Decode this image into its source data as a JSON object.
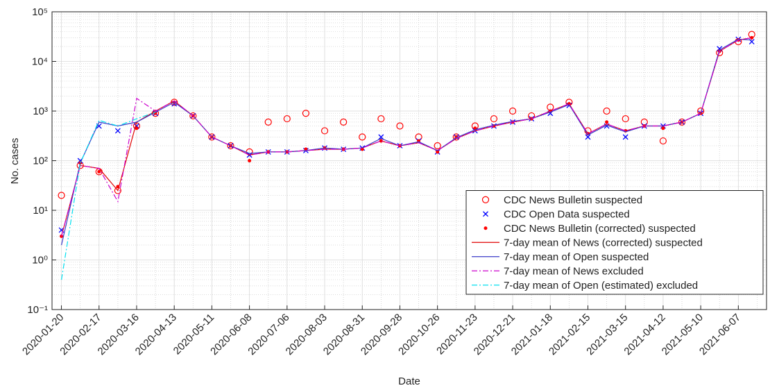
{
  "chart_data": {
    "type": "line",
    "y_label": "No. cases",
    "x_label": "Date",
    "log_y": true,
    "grid": true,
    "legend_position": "lower right",
    "x": [
      "2020-01-20",
      "2020-02-03",
      "2020-02-17",
      "2020-03-02",
      "2020-03-16",
      "2020-03-30",
      "2020-04-13",
      "2020-04-27",
      "2020-05-11",
      "2020-05-25",
      "2020-06-08",
      "2020-06-22",
      "2020-07-06",
      "2020-07-20",
      "2020-08-03",
      "2020-08-17",
      "2020-08-31",
      "2020-09-14",
      "2020-09-28",
      "2020-10-12",
      "2020-10-26",
      "2020-11-09",
      "2020-11-23",
      "2020-12-07",
      "2020-12-21",
      "2021-01-04",
      "2021-01-18",
      "2021-02-01",
      "2021-02-15",
      "2021-03-01",
      "2021-03-15",
      "2021-03-29",
      "2021-04-12",
      "2021-04-26",
      "2021-05-10",
      "2021-05-24",
      "2021-06-07",
      "2021-06-17"
    ],
    "xlim": [
      "2020-01-13",
      "2021-06-28"
    ],
    "xticks": [
      "2020-01-20",
      "2020-02-17",
      "2020-03-16",
      "2020-04-13",
      "2020-05-11",
      "2020-06-08",
      "2020-07-06",
      "2020-08-03",
      "2020-08-31",
      "2020-09-28",
      "2020-10-26",
      "2020-11-23",
      "2020-12-21",
      "2021-01-18",
      "2021-02-15",
      "2021-03-15",
      "2021-04-12",
      "2021-05-10",
      "2021-06-07"
    ],
    "ylim": [
      0.1,
      100000
    ],
    "yticks": [
      {
        "value": 0.1,
        "label": "10⁻¹"
      },
      {
        "value": 1,
        "label": "10⁰"
      },
      {
        "value": 10,
        "label": "10¹"
      },
      {
        "value": 100,
        "label": "10²"
      },
      {
        "value": 1000,
        "label": "10³"
      },
      {
        "value": 10000,
        "label": "10⁴"
      },
      {
        "value": 100000,
        "label": "10⁵"
      }
    ],
    "series": [
      {
        "name": "CDC News Bulletin suspected",
        "color": "#ff0000",
        "marker": "circle",
        "values": [
          20,
          80,
          60,
          25,
          500,
          900,
          1500,
          800,
          300,
          200,
          150,
          600,
          700,
          900,
          400,
          600,
          300,
          700,
          500,
          300,
          200,
          300,
          500,
          700,
          1000,
          800,
          1200,
          1500,
          400,
          1000,
          700,
          600,
          250,
          600,
          1000,
          15000,
          25000,
          35000
        ]
      },
      {
        "name": "CDC Open Data suspected",
        "color": "#0000ff",
        "marker": "x",
        "values": [
          4,
          100,
          500,
          400,
          500,
          900,
          1400,
          800,
          300,
          200,
          130,
          150,
          150,
          160,
          180,
          170,
          180,
          300,
          200,
          250,
          150,
          300,
          400,
          500,
          600,
          700,
          900,
          1300,
          300,
          500,
          300,
          500,
          500,
          600,
          900,
          18000,
          28000,
          25000
        ]
      },
      {
        "name": "CDC News Bulletin (corrected) suspected",
        "color": "#ff0000",
        "marker": "dot",
        "values": [
          3,
          90,
          60,
          30,
          450,
          900,
          1500,
          800,
          300,
          200,
          100,
          150,
          150,
          170,
          180,
          170,
          170,
          250,
          200,
          250,
          150,
          300,
          450,
          500,
          600,
          700,
          1000,
          1400,
          350,
          600,
          400,
          500,
          450,
          600,
          900,
          16000,
          27000,
          30000
        ]
      },
      {
        "name": "7-day mean of News (corrected) suspected",
        "color": "#e00000",
        "line": "solid",
        "values": [
          3,
          80,
          70,
          25,
          600,
          1000,
          1600,
          800,
          300,
          200,
          130,
          150,
          150,
          160,
          170,
          170,
          180,
          250,
          200,
          230,
          160,
          280,
          400,
          500,
          600,
          700,
          1000,
          1400,
          350,
          550,
          400,
          500,
          500,
          600,
          900,
          16000,
          27000,
          30000
        ]
      },
      {
        "name": "7-day mean of Open suspected",
        "color": "#3a3ac8",
        "line": "solid",
        "values": [
          2,
          90,
          600,
          500,
          600,
          950,
          1500,
          800,
          300,
          200,
          140,
          150,
          150,
          160,
          180,
          170,
          180,
          280,
          200,
          240,
          160,
          290,
          420,
          520,
          620,
          700,
          950,
          1350,
          330,
          520,
          380,
          500,
          500,
          600,
          900,
          17000,
          28000,
          27000
        ]
      },
      {
        "name": "7-day mean of News excluded",
        "color": "#cc00cc",
        "line": "dashdot",
        "values": [
          3,
          80,
          70,
          15,
          1800,
          1000,
          1600,
          800,
          300,
          200,
          130,
          150,
          150,
          160,
          170,
          170,
          180,
          250,
          200,
          230,
          160,
          280,
          400,
          500,
          600,
          700,
          1000,
          1400,
          350,
          550,
          400,
          500,
          500,
          600,
          900,
          16000,
          27000,
          30000
        ]
      },
      {
        "name": "7-day mean of Open (estimated) excluded",
        "color": "#00e0f0",
        "line": "dashdot",
        "values": [
          0.4,
          90,
          650,
          500,
          700,
          950,
          null,
          null,
          null,
          null,
          null,
          null,
          null,
          null,
          null,
          null,
          null,
          null,
          null,
          null,
          null,
          null,
          null,
          null,
          null,
          null,
          null,
          null,
          null,
          null,
          null,
          null,
          null,
          null,
          null,
          null,
          null,
          null
        ]
      }
    ]
  }
}
